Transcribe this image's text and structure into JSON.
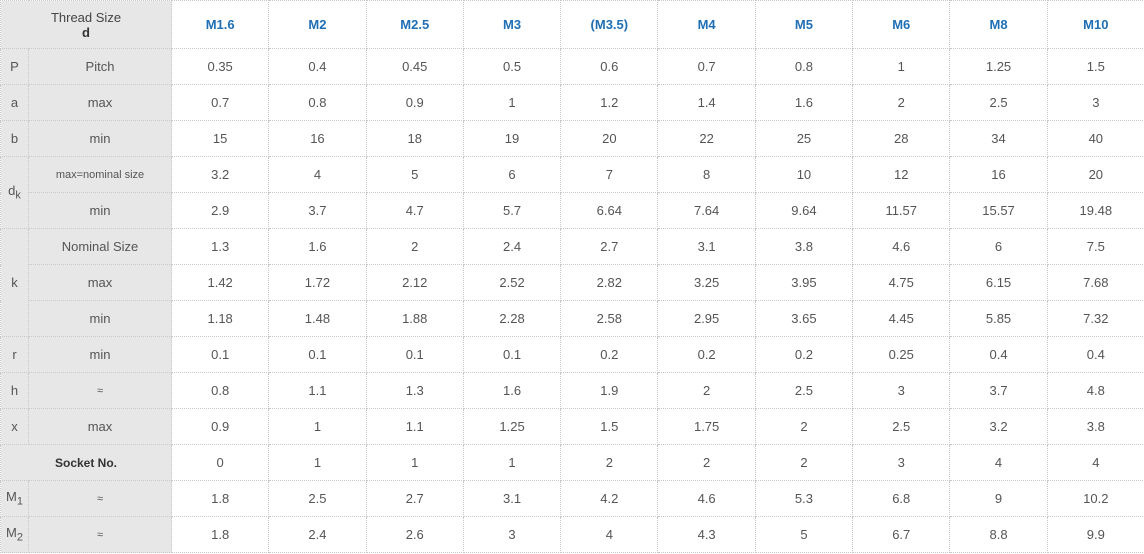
{
  "header": {
    "corner_line1": "Thread Size",
    "corner_line2": "d",
    "sizes": [
      "M1.6",
      "M2",
      "M2.5",
      "M3",
      "(M3.5)",
      "M4",
      "M5",
      "M6",
      "M8",
      "M10"
    ]
  },
  "rows": [
    {
      "sym": "P",
      "label": "Pitch",
      "values": [
        "0.35",
        "0.4",
        "0.45",
        "0.5",
        "0.6",
        "0.7",
        "0.8",
        "1",
        "1.25",
        "1.5"
      ]
    },
    {
      "sym": "a",
      "label": "max",
      "values": [
        "0.7",
        "0.8",
        "0.9",
        "1",
        "1.2",
        "1.4",
        "1.6",
        "2",
        "2.5",
        "3"
      ]
    },
    {
      "sym": "b",
      "label": "min",
      "values": [
        "15",
        "16",
        "18",
        "19",
        "20",
        "22",
        "25",
        "28",
        "34",
        "40"
      ]
    },
    {
      "sym_base": "d",
      "sym_sub": "k",
      "label": "max=nominal size",
      "values": [
        "3.2",
        "4",
        "5",
        "6",
        "7",
        "8",
        "10",
        "12",
        "16",
        "20"
      ]
    },
    {
      "label": "min",
      "values": [
        "2.9",
        "3.7",
        "4.7",
        "5.7",
        "6.64",
        "7.64",
        "9.64",
        "11.57",
        "15.57",
        "19.48"
      ]
    },
    {
      "sym": "k",
      "label": "Nominal Size",
      "values": [
        "1.3",
        "1.6",
        "2",
        "2.4",
        "2.7",
        "3.1",
        "3.8",
        "4.6",
        "6",
        "7.5"
      ]
    },
    {
      "label": "max",
      "values": [
        "1.42",
        "1.72",
        "2.12",
        "2.52",
        "2.82",
        "3.25",
        "3.95",
        "4.75",
        "6.15",
        "7.68"
      ]
    },
    {
      "label": "min",
      "values": [
        "1.18",
        "1.48",
        "1.88",
        "2.28",
        "2.58",
        "2.95",
        "3.65",
        "4.45",
        "5.85",
        "7.32"
      ]
    },
    {
      "sym": "r",
      "label": "min",
      "values": [
        "0.1",
        "0.1",
        "0.1",
        "0.1",
        "0.2",
        "0.2",
        "0.2",
        "0.25",
        "0.4",
        "0.4"
      ]
    },
    {
      "sym": "h",
      "label": "≈",
      "values": [
        "0.8",
        "1.1",
        "1.3",
        "1.6",
        "1.9",
        "2",
        "2.5",
        "3",
        "3.7",
        "4.8"
      ]
    },
    {
      "sym": "x",
      "label": "max",
      "values": [
        "0.9",
        "1",
        "1.1",
        "1.25",
        "1.5",
        "1.75",
        "2",
        "2.5",
        "3.2",
        "3.8"
      ]
    },
    {
      "label": "Socket No.",
      "values": [
        "0",
        "1",
        "1",
        "1",
        "2",
        "2",
        "2",
        "3",
        "4",
        "4"
      ]
    },
    {
      "sym_base": "M",
      "sym_sub": "1",
      "label": "≈",
      "values": [
        "1.8",
        "2.5",
        "2.7",
        "3.1",
        "4.2",
        "4.6",
        "5.3",
        "6.8",
        "9",
        "10.2"
      ]
    },
    {
      "sym_base": "M",
      "sym_sub": "2",
      "label": "≈",
      "values": [
        "1.8",
        "2.4",
        "2.6",
        "3",
        "4",
        "4.3",
        "5",
        "6.7",
        "8.8",
        "9.9"
      ]
    }
  ],
  "colors": {
    "header_text": "#1f6fb5",
    "label_bg": "#e7e7e7",
    "border": "#c8c8c8"
  }
}
